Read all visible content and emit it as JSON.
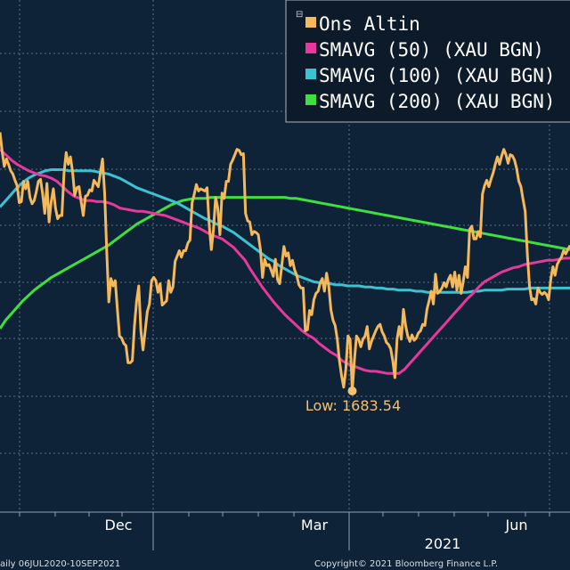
{
  "chart_data": {
    "type": "line",
    "title": "",
    "xlabel": "",
    "ylabel": "",
    "grid": true,
    "legend_position": "top-right",
    "x_tick_labels": [
      "Dec",
      "Mar",
      "Jun"
    ],
    "year_label": "2021",
    "ylim": [
      1570,
      2050
    ],
    "series": [
      {
        "name": "Ons Altin",
        "color": "#f5b85a",
        "values": [
          1926,
          1908,
          1894,
          1901,
          1896,
          1890,
          1887,
          1881,
          1876,
          1860,
          1861,
          1880,
          1873,
          1880,
          1865,
          1859,
          1862,
          1870,
          1880,
          1882,
          1868,
          1850,
          1878,
          1842,
          1861,
          1873,
          1855,
          1845,
          1848,
          1848,
          1888,
          1907,
          1896,
          1903,
          1889,
          1867,
          1874,
          1875,
          1861,
          1848,
          1866,
          1867,
          1872,
          1871,
          1881,
          1878,
          1875,
          1888,
          1901,
          1869,
          1813,
          1767,
          1789,
          1782,
          1787,
          1760,
          1735,
          1733,
          1728,
          1726,
          1710,
          1710,
          1712,
          1745,
          1768,
          1782,
          1740,
          1722,
          1740,
          1758,
          1765,
          1787,
          1790,
          1787,
          1776,
          1784,
          1764,
          1766,
          1768,
          1787,
          1776,
          1781,
          1805,
          1810,
          1815,
          1809,
          1815,
          1815,
          1822,
          1825,
          1860,
          1868,
          1877,
          1871,
          1873,
          1872,
          1871,
          1874,
          1839,
          1816,
          1835,
          1865,
          1855,
          1830,
          1869,
          1864,
          1880,
          1880,
          1896,
          1900,
          1905,
          1910,
          1909,
          1905,
          1906,
          1850,
          1843,
          1842,
          1830,
          1833,
          1832,
          1830,
          1816,
          1790,
          1807,
          1801,
          1802,
          1797,
          1791,
          1807,
          1788,
          1784,
          1801,
          1819,
          1810,
          1813,
          1801,
          1806,
          1797,
          1792,
          1783,
          1780,
          1780,
          1740,
          1741,
          1759,
          1755,
          1769,
          1775,
          1777,
          1785,
          1789,
          1777,
          1794,
          1782,
          1760,
          1750,
          1745,
          1732,
          1712,
          1698,
          1687,
          1704,
          1735,
          1732,
          1683.54,
          1712,
          1735,
          1732,
          1725,
          1732,
          1735,
          1744,
          1723,
          1730,
          1735,
          1740,
          1744,
          1746,
          1739,
          1735,
          1729,
          1727,
          1723,
          1712,
          1696,
          1732,
          1744,
          1732,
          1760,
          1745,
          1735,
          1730,
          1736,
          1731,
          1733,
          1738,
          1740,
          1746,
          1745,
          1760,
          1768,
          1777,
          1765,
          1793,
          1775,
          1777,
          1780,
          1785,
          1781,
          1788,
          1792,
          1781,
          1795,
          1778,
          1792,
          1775,
          1786,
          1800,
          1790,
          1835,
          1838,
          1826,
          1826,
          1833,
          1828,
          1868,
          1876,
          1881,
          1875,
          1882,
          1888,
          1896,
          1903,
          1896,
          1904,
          1910,
          1905,
          1897,
          1905,
          1904,
          1900,
          1892,
          1880,
          1875,
          1863,
          1852,
          1812,
          1782,
          1769,
          1770,
          1765,
          1780,
          1776,
          1774,
          1776,
          1774,
          1769,
          1788,
          1800,
          1792,
          1802,
          1806,
          1809,
          1815,
          1812,
          1816,
          1820
        ]
      },
      {
        "name": "SMAVG (50) (XAU BGN)",
        "color": "#e6399b",
        "values": [
          1910,
          1905,
          1900,
          1896,
          1893,
          1890,
          1888,
          1886,
          1885,
          1883,
          1880,
          1875,
          1870,
          1866,
          1864,
          1862,
          1862,
          1861,
          1861,
          1860,
          1858,
          1855,
          1854,
          1853,
          1852,
          1852,
          1851,
          1850,
          1849,
          1848,
          1846,
          1844,
          1842,
          1840,
          1838,
          1836,
          1833,
          1830,
          1828,
          1826,
          1822,
          1818,
          1812,
          1806,
          1797,
          1789,
          1781,
          1774,
          1767,
          1761,
          1755,
          1750,
          1745,
          1740,
          1736,
          1733,
          1728,
          1724,
          1720,
          1717,
          1712,
          1709,
          1707,
          1705,
          1703,
          1702,
          1702,
          1701,
          1700,
          1700,
          1700,
          1704,
          1710,
          1716,
          1722,
          1728,
          1734,
          1740,
          1746,
          1752,
          1758,
          1764,
          1770,
          1775,
          1781,
          1786,
          1789,
          1792,
          1795,
          1797,
          1799,
          1800,
          1802,
          1803,
          1804,
          1805,
          1806,
          1806,
          1807,
          1808,
          1808
        ]
      },
      {
        "name": "SMAVG (100) (XAU BGN)",
        "color": "#3cc3d2",
        "values": [
          1856,
          1862,
          1868,
          1874,
          1879,
          1883,
          1886,
          1888,
          1890,
          1891,
          1891,
          1891,
          1890,
          1890,
          1890,
          1890,
          1890,
          1889,
          1888,
          1887,
          1885,
          1883,
          1880,
          1877,
          1874,
          1872,
          1870,
          1868,
          1866,
          1864,
          1862,
          1860,
          1857,
          1854,
          1851,
          1848,
          1845,
          1843,
          1840,
          1838,
          1835,
          1832,
          1828,
          1824,
          1820,
          1816,
          1812,
          1808,
          1805,
          1801,
          1798,
          1795,
          1792,
          1790,
          1788,
          1786,
          1785,
          1785,
          1784,
          1783,
          1783,
          1782,
          1782,
          1782,
          1781,
          1781,
          1780,
          1780,
          1779,
          1779,
          1778,
          1778,
          1778,
          1777,
          1777,
          1776,
          1776,
          1776,
          1776,
          1776,
          1776,
          1776,
          1776,
          1777,
          1777,
          1778,
          1778,
          1778,
          1778,
          1779,
          1779,
          1779,
          1779,
          1780,
          1780,
          1780,
          1780,
          1780,
          1780,
          1780,
          1780
        ]
      },
      {
        "name": "SMAVG (200) (XAU BGN)",
        "color": "#3ee03e",
        "values": [
          1742,
          1750,
          1756,
          1762,
          1768,
          1773,
          1778,
          1782,
          1786,
          1790,
          1793,
          1796,
          1799,
          1802,
          1805,
          1808,
          1811,
          1814,
          1817,
          1820,
          1824,
          1828,
          1832,
          1836,
          1840,
          1843,
          1846,
          1849,
          1852,
          1855,
          1858,
          1860,
          1862,
          1863,
          1864,
          1864,
          1864,
          1865,
          1865,
          1865,
          1865,
          1865,
          1865,
          1865,
          1865,
          1865,
          1865,
          1865,
          1865,
          1865,
          1865,
          1864,
          1864,
          1863,
          1862,
          1861,
          1860,
          1859,
          1858,
          1857,
          1856,
          1855,
          1854,
          1853,
          1852,
          1851,
          1850,
          1849,
          1848,
          1847,
          1846,
          1845,
          1844,
          1843,
          1842,
          1841,
          1840,
          1839,
          1838,
          1837,
          1836,
          1835,
          1834,
          1833,
          1832,
          1831,
          1830,
          1829,
          1828,
          1827,
          1826,
          1825,
          1824,
          1823,
          1822,
          1821,
          1820,
          1819,
          1818,
          1817,
          1816
        ]
      }
    ],
    "annotations": [
      {
        "text": "Low: 1683.54",
        "value": 1683.54
      }
    ]
  },
  "footer": {
    "left": "aily 06JUL2020-10SEP2021",
    "right": "Copyright© 2021 Bloomberg Finance L.P."
  }
}
